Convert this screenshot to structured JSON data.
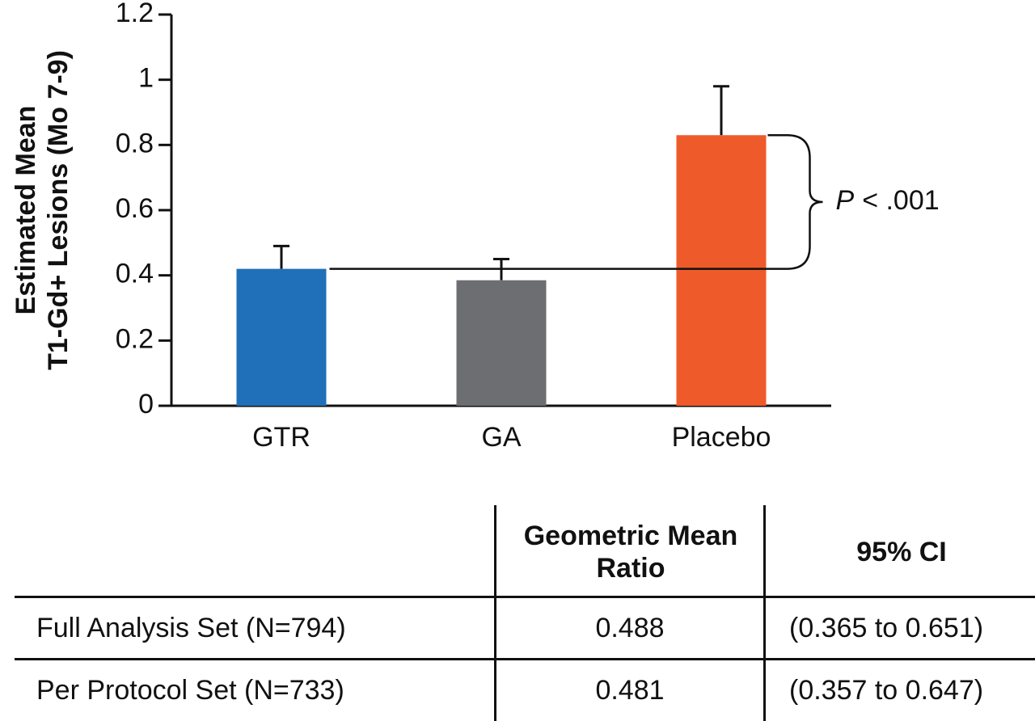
{
  "chart_data": {
    "type": "bar",
    "y_label": [
      "Estimated Mean",
      "T1-Gd+ Lesions (Mo 7-9)"
    ],
    "categories": [
      "GTR",
      "GA",
      "Placebo"
    ],
    "values": [
      0.42,
      0.385,
      0.83
    ],
    "errors": [
      0.07,
      0.065,
      0.15
    ],
    "colors": [
      "#1f70b8",
      "#6d6e71",
      "#ef5a2a"
    ],
    "ylim": [
      0,
      1.2
    ],
    "yticks": [
      0,
      0.2,
      0.4,
      0.6,
      0.8,
      1,
      1.2
    ],
    "annotation_symbol": "P",
    "annotation": "< .001"
  },
  "table": {
    "columns": [
      "Geometric Mean Ratio",
      "95% CI"
    ],
    "rows": [
      [
        "Full Analysis Set (N=794)",
        "0.488",
        "(0.365 to 0.651)"
      ],
      [
        "Per Protocol Set (N=733)",
        "0.481",
        "(0.357 to 0.647)"
      ]
    ]
  }
}
